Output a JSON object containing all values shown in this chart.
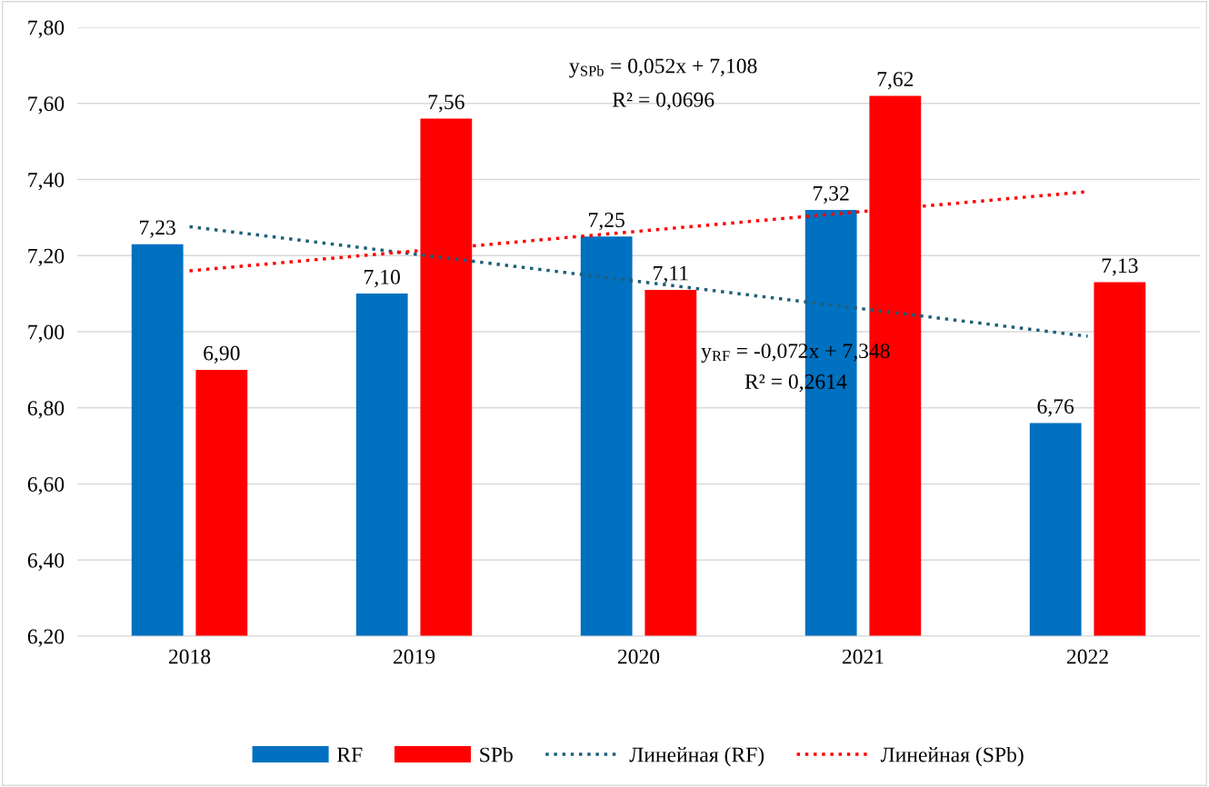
{
  "chart_data": {
    "type": "bar",
    "categories": [
      "2018",
      "2019",
      "2020",
      "2021",
      "2022"
    ],
    "series": [
      {
        "name": "RF",
        "color": "#0070c0",
        "values": [
          7.23,
          7.1,
          7.25,
          7.32,
          6.76
        ],
        "value_labels": [
          "7,23",
          "7,10",
          "7,25",
          "7,32",
          "6,76"
        ]
      },
      {
        "name": "SPb",
        "color": "#ff0000",
        "values": [
          6.9,
          7.56,
          7.11,
          7.62,
          7.13
        ],
        "value_labels": [
          "6,90",
          "7,56",
          "7,11",
          "7,62",
          "7,13"
        ]
      },
      {
        "name": "Линейная (RF)",
        "type": "line",
        "line_style": "dotted",
        "color": "#1f5f7a",
        "values": [
          7.276,
          7.204,
          7.132,
          7.06,
          6.988
        ]
      },
      {
        "name": "Линейная (SPb)",
        "type": "line",
        "line_style": "dotted",
        "color": "#ff0000",
        "values": [
          7.16,
          7.212,
          7.264,
          7.316,
          7.368
        ]
      }
    ],
    "ylim": [
      6.2,
      7.8
    ],
    "yticks": [
      {
        "value": 6.2,
        "label": "6,20"
      },
      {
        "value": 6.4,
        "label": "6,40"
      },
      {
        "value": 6.6,
        "label": "6,60"
      },
      {
        "value": 6.8,
        "label": "6,80"
      },
      {
        "value": 7.0,
        "label": "7,00"
      },
      {
        "value": 7.2,
        "label": "7,20"
      },
      {
        "value": 7.4,
        "label": "7,40"
      },
      {
        "value": 7.6,
        "label": "7,60"
      },
      {
        "value": 7.8,
        "label": "7,80"
      }
    ],
    "grid": "y",
    "legend": "bottom",
    "annotations": [
      "y$_{SPb}$ = 0,052x + 7,108",
      "R² = 0,0696",
      "y$_{RF}$ = -0,072x + 7,348",
      "R² = 0,2614"
    ]
  }
}
